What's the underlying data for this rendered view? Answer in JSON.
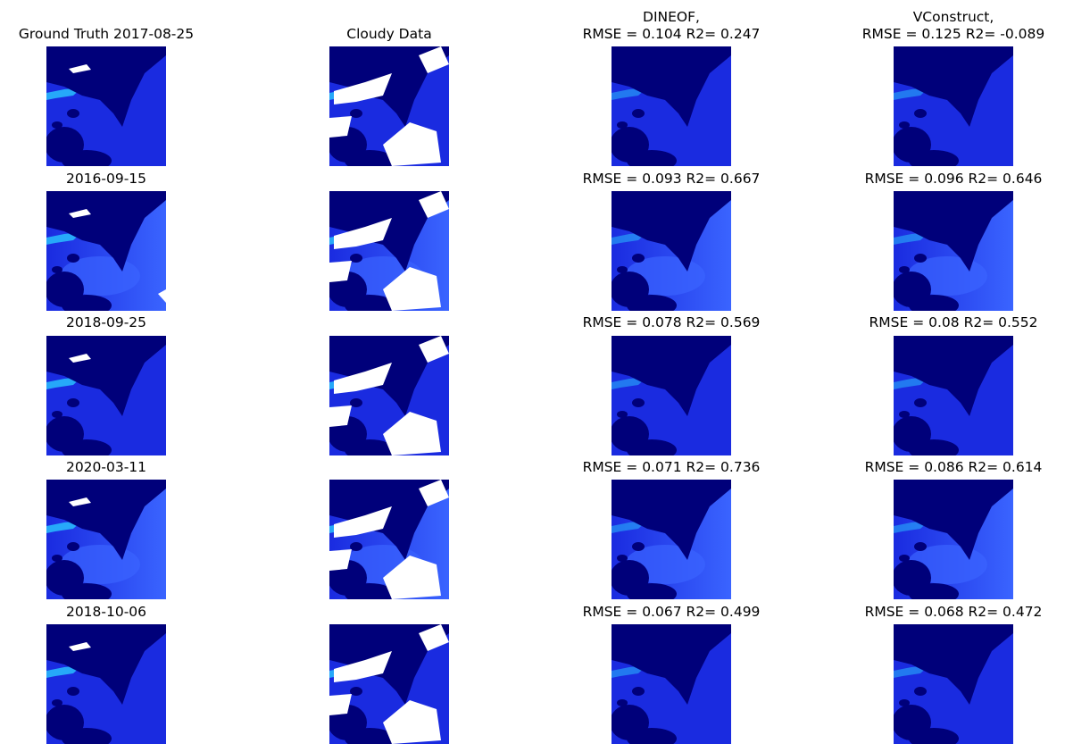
{
  "columns": [
    {
      "id": "ground-truth",
      "header": "Ground Truth 2017-08-25"
    },
    {
      "id": "cloudy",
      "header": "Cloudy Data"
    },
    {
      "id": "dineof",
      "header_line1": "DINEOF,",
      "header_line2": "RMSE = 0.104 R2= 0.247"
    },
    {
      "id": "vconstruct",
      "header_line1": "VConstruct,",
      "header_line2": "RMSE = 0.125 R2= -0.089"
    }
  ],
  "rows": [
    {
      "date": "2017-08-25",
      "dineof": "RMSE = 0.104 R2= 0.247",
      "vconstruct": "RMSE = 0.125 R2= -0.089"
    },
    {
      "date": "2016-09-15",
      "dineof": "RMSE = 0.093 R2= 0.667",
      "vconstruct": "RMSE = 0.096 R2= 0.646"
    },
    {
      "date": "2018-09-25",
      "dineof": "RMSE = 0.078 R2= 0.569",
      "vconstruct": "RMSE = 0.08 R2= 0.552"
    },
    {
      "date": "2020-03-11",
      "dineof": "RMSE = 0.071 R2= 0.736",
      "vconstruct": "RMSE = 0.086 R2= 0.614"
    },
    {
      "date": "2018-10-06",
      "dineof": "RMSE = 0.067 R2= 0.499",
      "vconstruct": "RMSE = 0.068 R2= 0.472"
    }
  ],
  "colors": {
    "land": "#00007a",
    "water": "#1a2be0",
    "water_light": "#3a64ff",
    "plume": "#29c8ff",
    "cloud": "#ffffff"
  }
}
